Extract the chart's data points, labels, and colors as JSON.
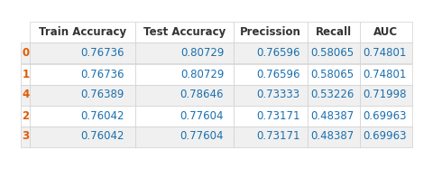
{
  "columns": [
    "Train Accuracy",
    "Test Accuracy",
    "Precission",
    "Recall",
    "AUC"
  ],
  "row_labels": [
    "0",
    "1",
    "4",
    "2",
    "3"
  ],
  "rows": [
    [
      0.76736,
      0.80729,
      0.76596,
      0.58065,
      0.74801
    ],
    [
      0.76736,
      0.80729,
      0.76596,
      0.58065,
      0.74801
    ],
    [
      0.76389,
      0.78646,
      0.73333,
      0.53226,
      0.71998
    ],
    [
      0.76042,
      0.77604,
      0.73171,
      0.48387,
      0.69963
    ],
    [
      0.76042,
      0.77604,
      0.73171,
      0.48387,
      0.69963
    ]
  ],
  "header_bg": "#ffffff",
  "row_color_odd": "#f0f0f0",
  "row_color_even": "#ffffff",
  "header_text_color": "#333333",
  "row_label_color": "#e05c00",
  "cell_text_color": "#1a6faf",
  "edge_color": "#d0d0d0",
  "figsize": [
    4.9,
    1.87
  ],
  "dpi": 100,
  "fontsize": 8.5
}
